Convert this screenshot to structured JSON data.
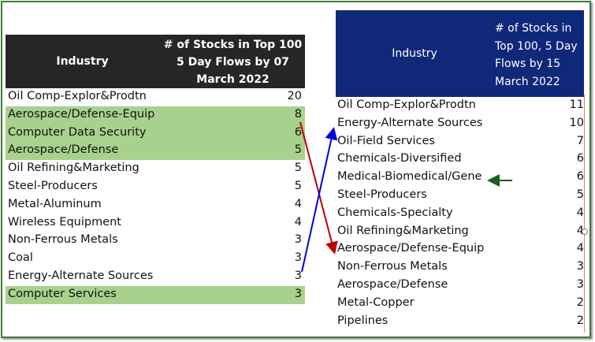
{
  "left_table": {
    "header_industry": "Industry",
    "header_value_lines": [
      "# of Stocks in Top 100",
      "5 Day Flows by 07",
      "March 2022"
    ],
    "rows": [
      {
        "name": "Oil Comp-Explor&Prodtn",
        "value": "20",
        "highlight": false
      },
      {
        "name": "Aerospace/Defense-Equip",
        "value": "8",
        "highlight": true
      },
      {
        "name": "Computer Data Security",
        "value": "6",
        "highlight": true
      },
      {
        "name": "Aerospace/Defense",
        "value": "5",
        "highlight": true
      },
      {
        "name": "Oil Refining&Marketing",
        "value": "5",
        "highlight": false
      },
      {
        "name": "Steel-Producers",
        "value": "5",
        "highlight": false
      },
      {
        "name": "Metal-Aluminum",
        "value": "4",
        "highlight": false
      },
      {
        "name": "Wireless Equipment",
        "value": "4",
        "highlight": false
      },
      {
        "name": "Non-Ferrous Metals",
        "value": "3",
        "highlight": false
      },
      {
        "name": "Coal",
        "value": "3",
        "highlight": false
      },
      {
        "name": "Energy-Alternate Sources",
        "value": "3",
        "highlight": false
      },
      {
        "name": "Computer Services",
        "value": "3",
        "highlight": true
      }
    ]
  },
  "right_table": {
    "header_industry": "Industry",
    "header_value_lines": [
      "# of Stocks in",
      "Top 100, 5 Day",
      "Flows by 15",
      "March 2022"
    ],
    "rows": [
      {
        "name": "Oil Comp-Explor&Prodtn",
        "value": "11"
      },
      {
        "name": "Energy-Alternate Sources",
        "value": "10"
      },
      {
        "name": "Oil-Field Services",
        "value": "7"
      },
      {
        "name": "Chemicals-Diversified",
        "value": "6"
      },
      {
        "name": "Medical-Biomedical/Gene",
        "value": "6"
      },
      {
        "name": "Steel-Producers",
        "value": "5"
      },
      {
        "name": "Chemicals-Specialty",
        "value": "4"
      },
      {
        "name": "Oil Refining&Marketing",
        "value": "4"
      },
      {
        "name": "Aerospace/Defense-Equip",
        "value": "4"
      },
      {
        "name": "Non-Ferrous Metals",
        "value": "3"
      },
      {
        "name": "Aerospace/Defense",
        "value": "3"
      },
      {
        "name": "Metal-Copper",
        "value": "2"
      },
      {
        "name": "Pipelines",
        "value": "2"
      }
    ]
  },
  "colors": {
    "frame": "#3f7a3a",
    "left_header": "#262626",
    "right_header": "#10287a",
    "highlight": "#a9d18e",
    "arrow_down": "#c00000",
    "arrow_up": "#0000e0",
    "arrow_mark": "#1b5e20"
  }
}
